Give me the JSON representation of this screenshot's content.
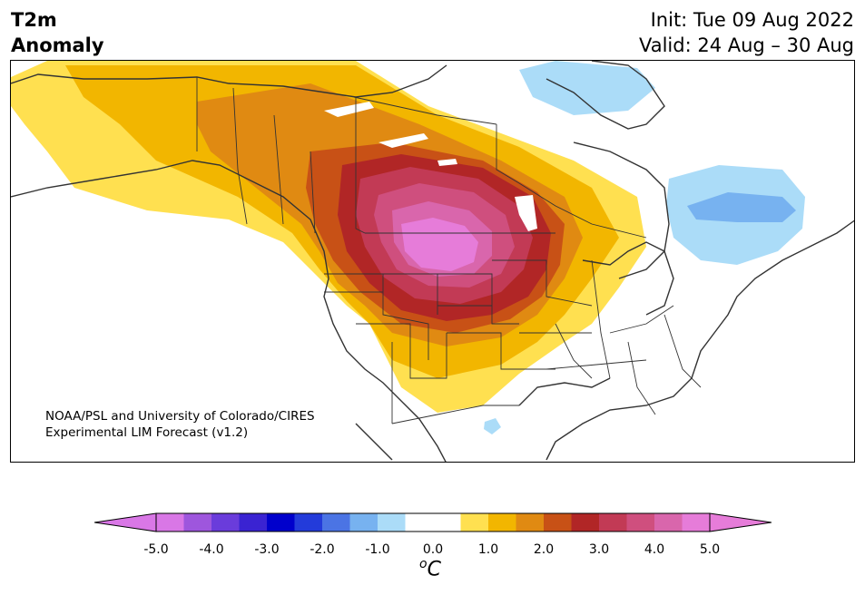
{
  "header": {
    "title_line1": "T2m",
    "title_line2": "Anomaly",
    "init": "Init: Tue 09 Aug 2022",
    "valid": "Valid: 24 Aug – 30 Aug"
  },
  "map": {
    "region": "North America",
    "credit_line1": "NOAA/PSL and University of Colorado/CIRES",
    "credit_line2": "Experimental LIM Forecast (v1.2)"
  },
  "colorbar": {
    "unit_main": "C",
    "unit_sup": "o",
    "ticks": [
      "-5.0",
      "-4.0",
      "-3.0",
      "-2.0",
      "-1.0",
      "0.0",
      "1.0",
      "2.0",
      "3.0",
      "4.0",
      "5.0"
    ],
    "colors": [
      "#d977e6",
      "#9e56dd",
      "#6a3cdb",
      "#3a23d2",
      "#0000cc",
      "#233bda",
      "#4b74e4",
      "#77b2f0",
      "#abdcf8",
      "#ffffff",
      "#ffffff",
      "#ffe050",
      "#f2b600",
      "#e08a12",
      "#c85116",
      "#b12626",
      "#c23a55",
      "#cf4f7e",
      "#d966ac",
      "#e67cd9"
    ],
    "under_color": "#d977e6",
    "over_color": "#e67cd9"
  }
}
